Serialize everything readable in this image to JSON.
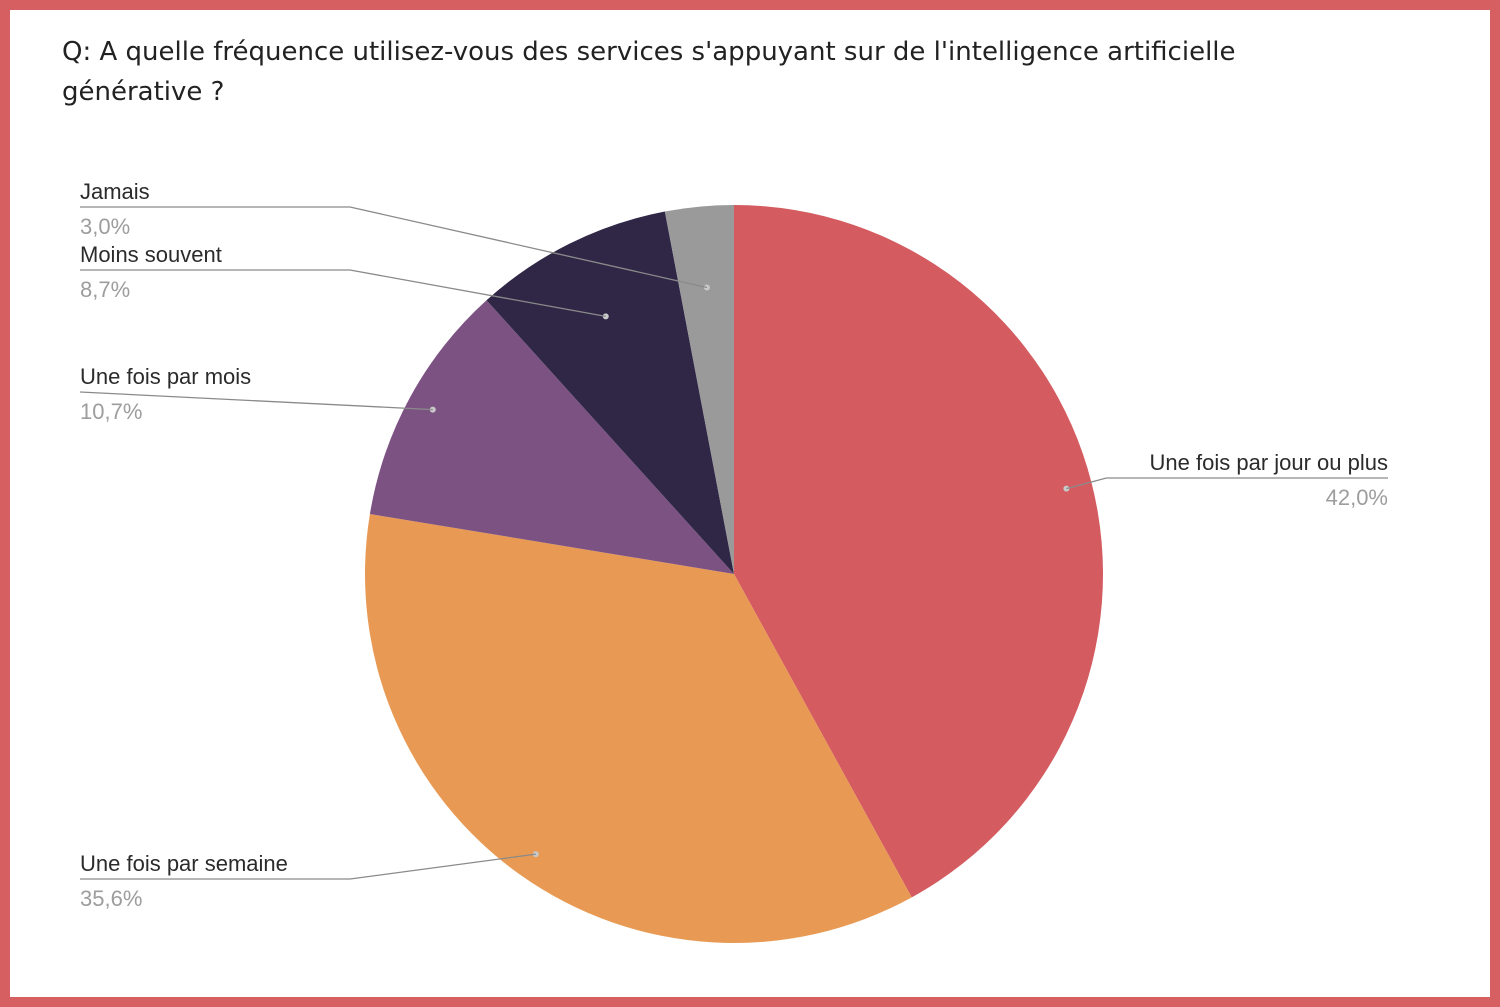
{
  "question": "Q: A quelle fréquence utilisez-vous des services s'appuyant sur de l'intelligence artificielle générative ?",
  "colors": {
    "frame": "#d65f62",
    "background": "#ffffff",
    "leader": "#8a8a8a",
    "label": "#2b2b2b",
    "value": "#9d9d9d"
  },
  "chart_data": {
    "type": "pie",
    "title": "Q: A quelle fréquence utilisez-vous des services s'appuyant sur de l'intelligence artificielle générative ?",
    "start_angle_deg": 0,
    "direction": "clockwise",
    "legend": "none",
    "slices": [
      {
        "label": "Une fois par jour ou plus",
        "value": 42.0,
        "value_label": "42,0%",
        "color": "#d45b60"
      },
      {
        "label": "Une fois par semaine",
        "value": 35.6,
        "value_label": "35,6%",
        "color": "#e89a54"
      },
      {
        "label": "Une fois par mois",
        "value": 10.7,
        "value_label": "10,7%",
        "color": "#7c5283"
      },
      {
        "label": "Moins souvent",
        "value": 8.7,
        "value_label": "8,7%",
        "color": "#302747"
      },
      {
        "label": "Jamais",
        "value": 3.0,
        "value_label": "3,0%",
        "color": "#9a9a9a"
      }
    ]
  }
}
